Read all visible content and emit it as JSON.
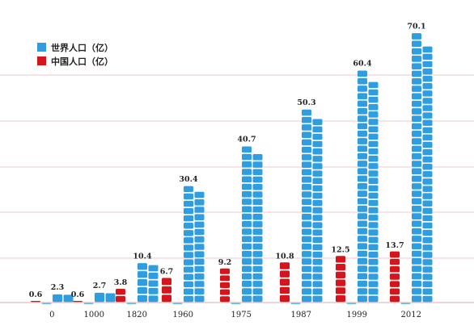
{
  "legend": {
    "world_label": "世界人口（亿）",
    "china_label": "中国人口（亿）"
  },
  "colors": {
    "world": "#2f9ee0",
    "china": "#d5141c",
    "grid": "#e7b8bf",
    "baseline": "#d9a9b0"
  },
  "chart_data": {
    "type": "bar",
    "categories": [
      "0",
      "1000",
      "1820",
      "1960",
      "1975",
      "1987",
      "1999",
      "2012"
    ],
    "series": [
      {
        "name": "中国人口（亿）",
        "values": [
          0.6,
          0.6,
          3.8,
          6.7,
          9.2,
          10.8,
          12.5,
          13.7
        ]
      },
      {
        "name": "世界人口（亿）",
        "values": [
          2.3,
          2.7,
          10.4,
          30.4,
          40.7,
          50.3,
          60.4,
          70.1
        ]
      }
    ],
    "value_labels_china": [
      "0.6",
      "0.6",
      "3.8",
      "6.7",
      "9.2",
      "10.8",
      "12.5",
      "13.7"
    ],
    "value_labels_world": [
      "2.3",
      "2.7",
      "10.4",
      "30.4",
      "40.7",
      "50.3",
      "60.4",
      "70.1"
    ],
    "ylim": [
      0,
      75
    ],
    "grid": true,
    "legend_position": "top-left"
  }
}
